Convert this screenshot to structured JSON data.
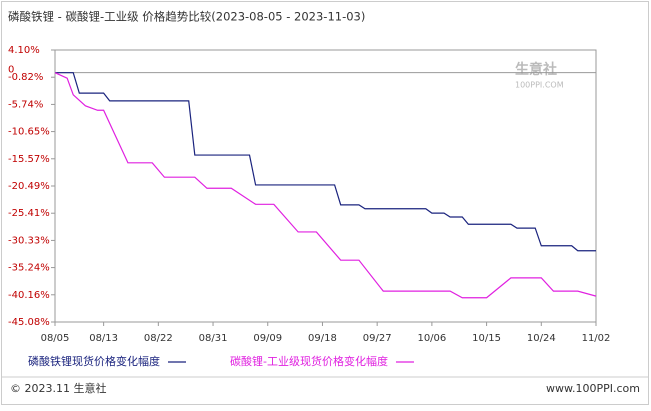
{
  "chart_data": {
    "type": "line",
    "title": "磷酸铁锂 - 碳酸锂-工业级 价格趋势比较(2023-08-05 - 2023-11-03)",
    "ylim": [
      -45.08,
      4.1
    ],
    "yticks": [
      {
        "value": 4.1,
        "label": "4.10%"
      },
      {
        "value": 0,
        "label": "0"
      },
      {
        "value": -0.82,
        "label": "-0.82%"
      },
      {
        "value": -5.74,
        "label": "-5.74%"
      },
      {
        "value": -10.65,
        "label": "-10.65%"
      },
      {
        "value": -15.57,
        "label": "-15.57%"
      },
      {
        "value": -20.49,
        "label": "-20.49%"
      },
      {
        "value": -25.41,
        "label": "-25.41%"
      },
      {
        "value": -30.33,
        "label": "-30.33%"
      },
      {
        "value": -35.24,
        "label": "-35.24%"
      },
      {
        "value": -40.16,
        "label": "-40.16%"
      },
      {
        "value": -45.08,
        "label": "-45.08%"
      }
    ],
    "xticks": [
      "08/05",
      "08/13",
      "08/22",
      "08/31",
      "09/09",
      "09/18",
      "09/27",
      "10/06",
      "10/15",
      "10/24",
      "11/02"
    ],
    "series": [
      {
        "name": "磷酸铁锂现货价格变化幅度",
        "color": "#1a237e",
        "x": [
          "08/05",
          "08/08",
          "08/09",
          "08/13",
          "08/14",
          "08/27",
          "08/28",
          "09/06",
          "09/07",
          "09/20",
          "09/21",
          "09/24",
          "09/25",
          "10/05",
          "10/06",
          "10/08",
          "10/09",
          "10/11",
          "10/12",
          "10/19",
          "10/20",
          "10/23",
          "10/24",
          "10/29",
          "10/30",
          "11/02"
        ],
        "values": [
          0,
          0,
          -3.7,
          -3.7,
          -5.1,
          -5.1,
          -14.9,
          -14.9,
          -20.3,
          -20.3,
          -23.9,
          -23.9,
          -24.6,
          -24.6,
          -25.4,
          -25.4,
          -26.1,
          -26.1,
          -27.4,
          -27.4,
          -28.1,
          -28.1,
          -31.3,
          -31.3,
          -32.2,
          -32.2
        ]
      },
      {
        "name": "碳酸锂-工业级现货价格变化幅度",
        "color": "#e020e0",
        "x": [
          "08/05",
          "08/07",
          "08/08",
          "08/10",
          "08/12",
          "08/13",
          "08/17",
          "08/21",
          "08/23",
          "08/28",
          "08/30",
          "09/03",
          "09/07",
          "09/10",
          "09/14",
          "09/17",
          "09/21",
          "09/24",
          "09/28",
          "10/09",
          "10/11",
          "10/15",
          "10/19",
          "10/24",
          "10/26",
          "10/30",
          "11/02"
        ],
        "values": [
          0,
          -1,
          -4,
          -6,
          -6.8,
          -6.8,
          -16.3,
          -16.3,
          -18.9,
          -18.9,
          -20.9,
          -20.9,
          -23.8,
          -23.8,
          -28.8,
          -28.8,
          -33.9,
          -33.9,
          -39.5,
          -39.5,
          -40.7,
          -40.7,
          -37.1,
          -37.1,
          -39.5,
          -39.5,
          -40.4
        ]
      }
    ],
    "watermark": "生意社",
    "watermark_sub": "100PPI.COM",
    "footer_left": "© 2023.11 生意社",
    "footer_right": "www.100PPI.com"
  }
}
